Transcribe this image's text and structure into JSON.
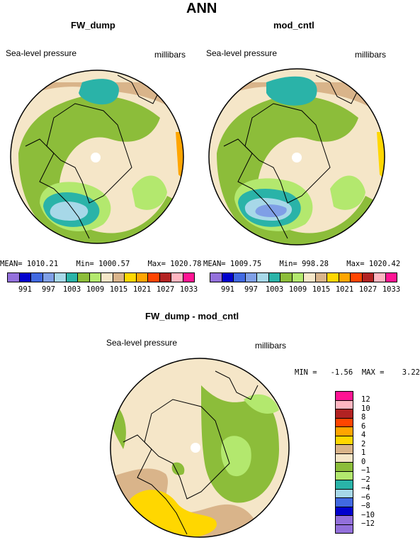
{
  "main_title": "ANN",
  "panels": [
    {
      "name": "FW_dump",
      "variable": "Sea-level pressure",
      "units": "millibars",
      "stats": "MEAN= 1010.21    Min= 1000.57    Max= 1020.78"
    },
    {
      "name": "mod_cntl",
      "variable": "Sea-level pressure",
      "units": "millibars",
      "stats": "MEAN= 1009.75    Min= 998.28    Max= 1020.42"
    }
  ],
  "diff_panel": {
    "name": "FW_dump - mod_cntl",
    "variable": "Sea-level pressure",
    "units": "millibars",
    "stats": "MIN =   -1.56  MAX =    3.22"
  },
  "colorbar_labels": [
    "991",
    "997",
    "1003",
    "1009",
    "1015",
    "1021",
    "1027",
    "1033"
  ],
  "colorbar_colors": [
    "#9370db",
    "#0000cd",
    "#4169e1",
    "#7f9fe6",
    "#a7d8e8",
    "#2ab3a8",
    "#8cbd3a",
    "#b3e86e",
    "#f5e6c8",
    "#d9b48a",
    "#ffd700",
    "#ffa500",
    "#ff4500",
    "#b22222",
    "#ffb6c1",
    "#ff1493"
  ],
  "diff_colorbar": [
    {
      "label": "12",
      "color": "#ff1493"
    },
    {
      "label": "10",
      "color": "#ffb6c1"
    },
    {
      "label": "8",
      "color": "#b22222"
    },
    {
      "label": "6",
      "color": "#ff4500"
    },
    {
      "label": "4",
      "color": "#ffa500"
    },
    {
      "label": "2",
      "color": "#ffd700"
    },
    {
      "label": "1",
      "color": "#d9b48a"
    },
    {
      "label": "0",
      "color": "#f5e6c8"
    },
    {
      "label": "−1",
      "color": "#8cbd3a"
    },
    {
      "label": "−2",
      "color": "#b3e86e"
    },
    {
      "label": "−4",
      "color": "#2ab3a8"
    },
    {
      "label": "−6",
      "color": "#a7d8e8"
    },
    {
      "label": "−8",
      "color": "#4169e1"
    },
    {
      "label": "−10",
      "color": "#0000cd"
    },
    {
      "label": "−12",
      "color": "#9370db"
    },
    {
      "label": "",
      "color": "#9370db"
    }
  ]
}
